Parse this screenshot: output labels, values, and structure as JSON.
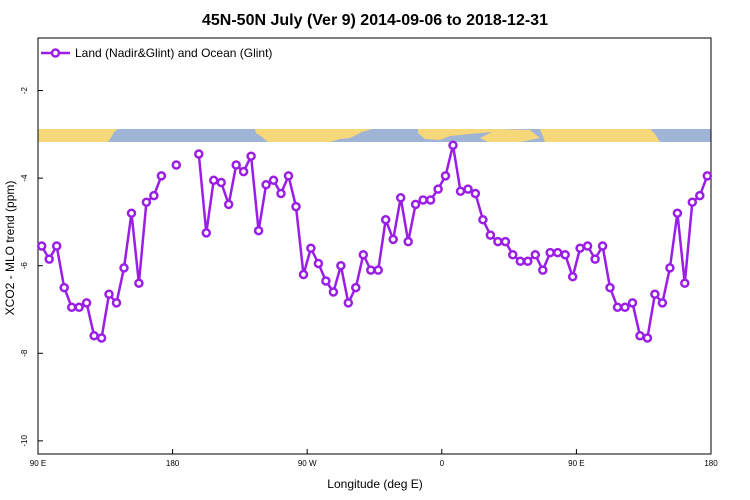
{
  "chart_data": {
    "type": "line",
    "title": "45N-50N July (Ver 9)   2014-09-06 to 2018-12-31",
    "xlabel": "Longitude (deg E)",
    "ylabel": "XCO2 - MLO trend (ppm)",
    "xlim": [
      90,
      450
    ],
    "ylim": [
      -10.3,
      -0.8
    ],
    "x_ticks": [
      {
        "value": 90,
        "label": "90 E"
      },
      {
        "value": 180,
        "label": "180"
      },
      {
        "value": 270,
        "label": "90 W"
      },
      {
        "value": 360,
        "label": "0"
      },
      {
        "value": 450,
        "label": "90 E"
      },
      {
        "value": 540,
        "label": "180"
      }
    ],
    "y_ticks": [
      {
        "value": -2,
        "label": "-2"
      },
      {
        "value": -4,
        "label": "-4"
      },
      {
        "value": -6,
        "label": "-6"
      },
      {
        "value": -8,
        "label": "-8"
      },
      {
        "value": -10,
        "label": "-10"
      }
    ],
    "legend": {
      "position": "top-left"
    },
    "series": [
      {
        "name": "Land (Nadir&Glint) and Ocean (Glint)",
        "color": "#9b1ee6",
        "segments": [
          {
            "x": [
              92.5,
              97.5,
              102.5,
              107.5,
              112.5,
              117.5,
              122.5,
              127.5,
              132.5,
              137.5,
              142.5,
              147.5,
              152.5,
              157.5,
              162.5,
              167.5,
              172.5
            ],
            "y": [
              -5.55,
              -5.85,
              -5.55,
              -6.5,
              -6.95,
              -6.95,
              -6.85,
              -7.6,
              -7.65,
              -6.65,
              -6.85,
              -6.05,
              -4.8,
              -6.4,
              -4.55,
              -4.4,
              -3.95
            ]
          },
          {
            "x": [
              182.5
            ],
            "y": [
              -3.7
            ]
          },
          {
            "x": [
              197.5,
              202.5,
              207.5,
              212.5,
              217.5,
              222.5,
              227.5,
              232.5,
              237.5,
              242.5,
              247.5,
              252.5,
              257.5,
              262.5,
              267.5,
              272.5,
              277.5,
              282.5,
              287.5,
              292.5,
              297.5,
              302.5,
              307.5,
              312.5,
              317.5,
              322.5,
              327.5,
              332.5,
              337.5,
              342.5,
              347.5,
              352.5,
              357.5,
              362.5,
              367.5,
              372.5,
              377.5,
              382.5,
              387.5,
              392.5,
              397.5,
              402.5,
              407.5,
              412.5,
              417.5,
              422.5,
              427.5,
              432.5,
              437.5,
              442.5,
              447.5,
              452.5,
              457.5,
              462.5,
              467.5,
              472.5,
              477.5,
              482.5,
              487.5,
              492.5,
              497.5,
              502.5,
              507.5,
              512.5,
              517.5,
              522.5,
              527.5,
              532.5,
              537.5
            ],
            "y": [
              -3.45,
              -5.25,
              -4.05,
              -4.1,
              -4.6,
              -3.7,
              -3.85,
              -3.5,
              -5.2,
              -4.15,
              -4.05,
              -4.35,
              -3.95,
              -4.65,
              -6.2,
              -5.6,
              -5.95,
              -6.35,
              -6.6,
              -6.0,
              -6.85,
              -6.5,
              -5.75,
              -6.1,
              -6.1,
              -4.95,
              -5.4,
              -4.45,
              -5.45,
              -4.6,
              -4.5,
              -4.5,
              -4.25,
              -3.95,
              -3.25,
              -4.3,
              -4.25,
              -4.35,
              -4.95,
              -5.3,
              -5.45,
              -5.45,
              -5.75,
              -5.9,
              -5.9,
              -5.75,
              -6.1,
              -5.7,
              -5.7,
              -5.75,
              -6.25,
              -5.6,
              -5.55,
              -5.85,
              -5.55,
              -6.5,
              -6.95,
              -6.95,
              -6.85,
              -7.6,
              -7.65,
              -6.65,
              -6.85,
              -6.05,
              -4.8,
              -6.4,
              -4.55,
              -4.4,
              -3.95
            ]
          }
        ]
      }
    ]
  }
}
